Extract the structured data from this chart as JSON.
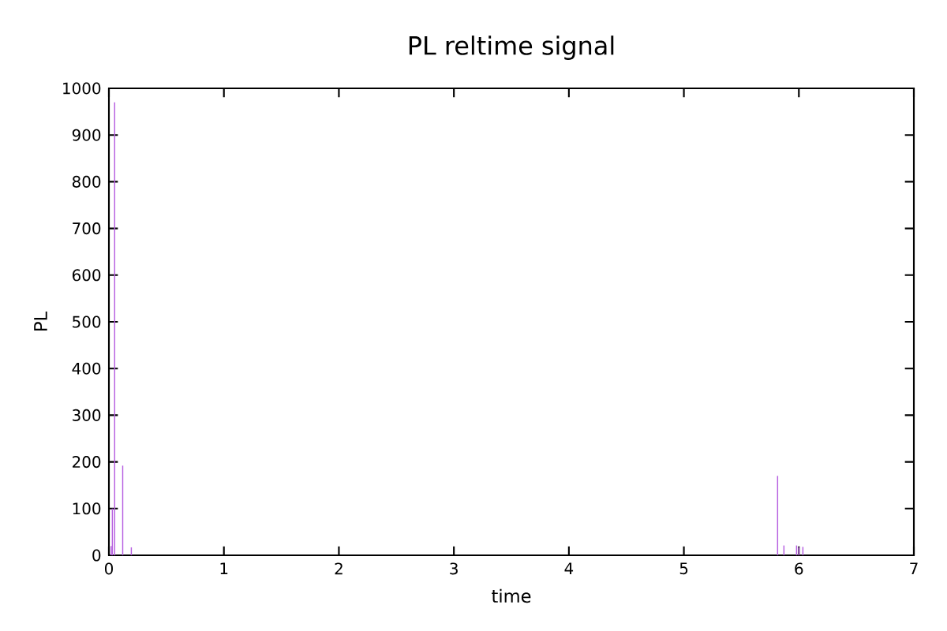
{
  "chart_data": {
    "type": "bar",
    "title": "PL reltime signal",
    "xlabel": "time",
    "ylabel": "PL",
    "color": "#b65fe0",
    "x": [
      0.02,
      0.03,
      0.05,
      0.12,
      0.195,
      5.815,
      5.87,
      5.98,
      6.0,
      6.035
    ],
    "values": [
      20,
      100,
      970,
      192,
      17,
      170,
      21,
      21,
      17,
      18
    ],
    "xlim": [
      0,
      7
    ],
    "xticks": [
      0,
      1,
      2,
      3,
      4,
      5,
      6,
      7
    ],
    "ylim": [
      0,
      1000
    ],
    "yticks": [
      0,
      100,
      200,
      300,
      400,
      500,
      600,
      700,
      800,
      900,
      1000
    ],
    "grid": false
  }
}
